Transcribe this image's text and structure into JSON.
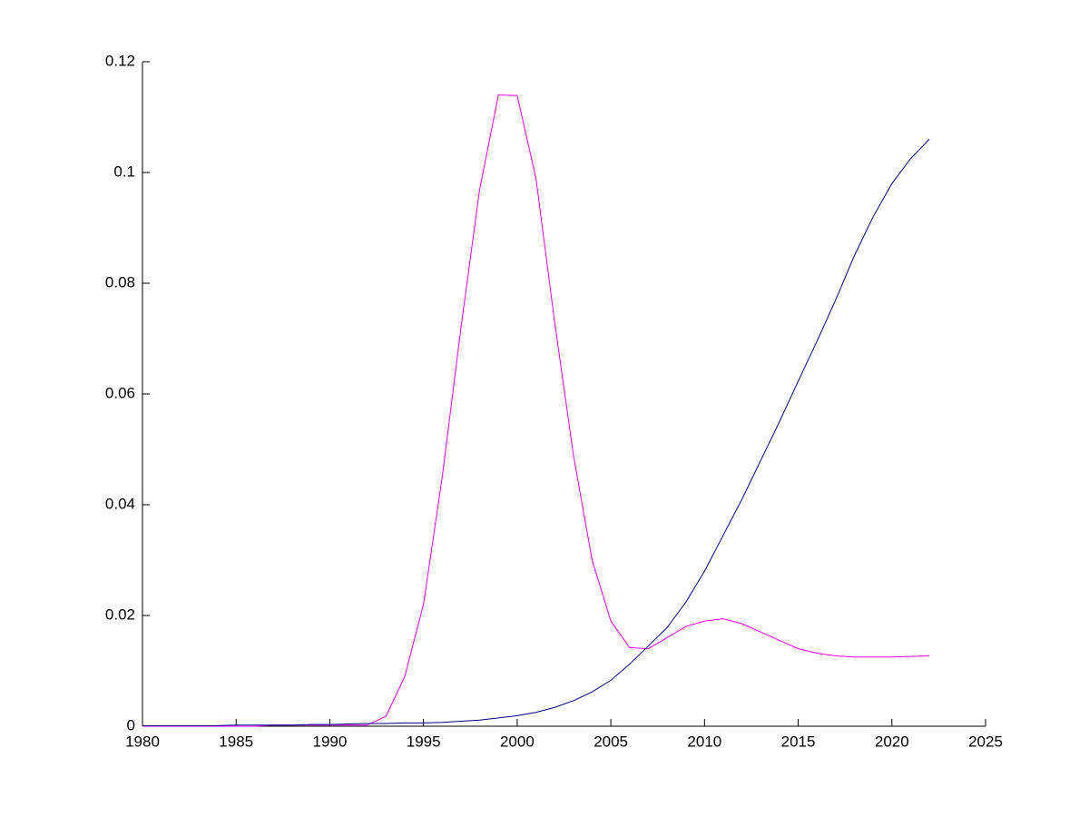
{
  "chart_data": {
    "type": "line",
    "x": [
      1980,
      1981,
      1982,
      1983,
      1984,
      1985,
      1986,
      1987,
      1988,
      1989,
      1990,
      1991,
      1992,
      1993,
      1994,
      1995,
      1996,
      1997,
      1998,
      1999,
      2000,
      2001,
      2002,
      2003,
      2004,
      2005,
      2006,
      2007,
      2008,
      2009,
      2010,
      2011,
      2012,
      2013,
      2014,
      2015,
      2016,
      2017,
      2018,
      2019,
      2020,
      2021,
      2022
    ],
    "series": [
      {
        "color": "#ff00ff",
        "values": [
          0,
          0,
          0,
          0,
          0,
          0,
          0,
          0.0002,
          0.0002,
          0.0002,
          0.0002,
          0.0002,
          0.0002,
          0.0018,
          0.009,
          0.022,
          0.045,
          0.072,
          0.097,
          0.114,
          0.1139,
          0.099,
          0.073,
          0.049,
          0.03,
          0.019,
          0.0142,
          0.014,
          0.016,
          0.018,
          0.019,
          0.0194,
          0.0185,
          0.017,
          0.0155,
          0.014,
          0.0132,
          0.0127,
          0.0125,
          0.0125,
          0.0125,
          0.0126,
          0.0127
        ]
      },
      {
        "color": "#000080",
        "values": [
          0.0001,
          0.0001,
          0.0001,
          0.0001,
          0.0001,
          0.0002,
          0.0002,
          0.0002,
          0.0002,
          0.0003,
          0.0003,
          0.0004,
          0.0005,
          0.0005,
          0.0006,
          0.0006,
          0.0007,
          0.0009,
          0.0011,
          0.0015,
          0.0019,
          0.0025,
          0.0034,
          0.0046,
          0.0062,
          0.0083,
          0.0112,
          0.0145,
          0.0178,
          0.0224,
          0.028,
          0.0345,
          0.041,
          0.048,
          0.055,
          0.0623,
          0.0695,
          0.077,
          0.085,
          0.092,
          0.098,
          0.1025,
          0.106
        ]
      }
    ],
    "xlim": [
      1980,
      2025
    ],
    "xticks": [
      1980,
      1985,
      1990,
      1995,
      2000,
      2005,
      2010,
      2015,
      2020,
      2025
    ],
    "ylim": [
      0,
      0.12
    ],
    "yticks": [
      0,
      0.02,
      0.04,
      0.06,
      0.08,
      0.1,
      0.12
    ],
    "grid": false
  }
}
